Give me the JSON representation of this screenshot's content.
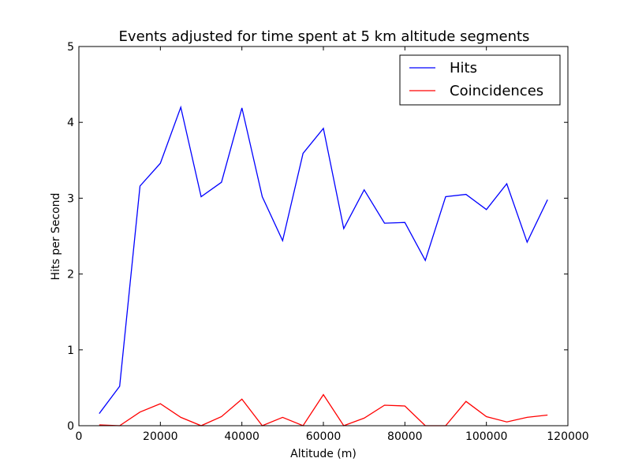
{
  "chart_data": {
    "type": "line",
    "title": "Events adjusted for time spent at 5 km altitude segments",
    "xlabel": "Altitude (m)",
    "ylabel": "Hits per Second",
    "xlim": [
      0,
      120000
    ],
    "ylim": [
      0,
      5
    ],
    "xticks": [
      0,
      20000,
      40000,
      60000,
      80000,
      100000,
      120000
    ],
    "yticks": [
      0,
      1,
      2,
      3,
      4,
      5
    ],
    "grid": false,
    "legend_position": "top-right",
    "x": [
      5000,
      10000,
      15000,
      20000,
      25000,
      30000,
      35000,
      40000,
      45000,
      50000,
      55000,
      60000,
      65000,
      70000,
      75000,
      80000,
      85000,
      90000,
      95000,
      100000,
      105000,
      110000,
      115000
    ],
    "series": [
      {
        "name": "Hits",
        "color": "#0000ff",
        "values": [
          0.16,
          0.52,
          3.16,
          3.46,
          4.2,
          3.02,
          3.21,
          4.19,
          3.02,
          2.44,
          3.59,
          3.92,
          2.6,
          3.11,
          2.67,
          2.68,
          2.18,
          3.02,
          3.05,
          2.85,
          3.19,
          2.42,
          2.98
        ]
      },
      {
        "name": "Coincidences",
        "color": "#ff0000",
        "values": [
          0.01,
          0.0,
          0.18,
          0.29,
          0.11,
          0.0,
          0.12,
          0.35,
          0.0,
          0.11,
          0.0,
          0.41,
          0.0,
          0.1,
          0.27,
          0.26,
          0.0,
          0.0,
          0.32,
          0.12,
          0.05,
          0.11,
          0.14
        ]
      }
    ]
  }
}
